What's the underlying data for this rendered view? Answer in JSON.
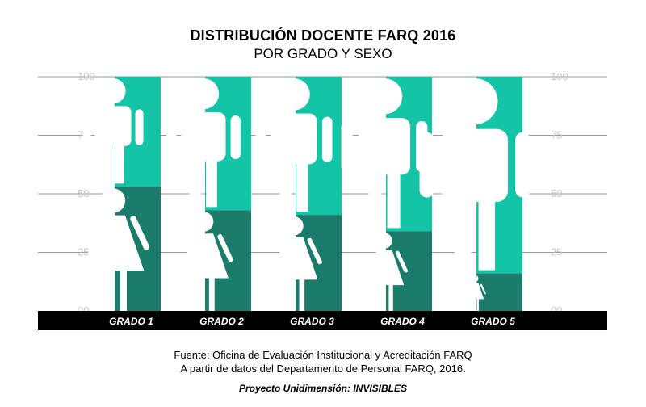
{
  "title": "DISTRIBUCIÓN DOCENTE FARQ 2016",
  "subtitle": "POR GRADO Y SEXO",
  "source_line1": "Fuente: Oficina de Evaluación Institucional y Acreditación FARQ",
  "source_line2": "A partir de datos del Departamento de Personal FARQ, 2016.",
  "project": "Proyecto Unidimensión: INVISIBLES",
  "chart_data": {
    "type": "bar",
    "stacked": true,
    "ylim": [
      0,
      100
    ],
    "y_ticks": [
      "00",
      "25",
      "50",
      "75",
      "100"
    ],
    "categories": [
      "GRADO 1",
      "GRADO 2",
      "GRADO 3",
      "GRADO 4",
      "GRADO 5"
    ],
    "series": [
      {
        "values": [
          53,
          43,
          41,
          34,
          16
        ],
        "color": "#1b7c6c",
        "icon": "woman-icon"
      },
      {
        "values": [
          47,
          57,
          59,
          66,
          84
        ],
        "color": "#14c4a6",
        "icon": "man-icon"
      }
    ],
    "axis_bar_color": "#000000",
    "gridline_color": "#999999"
  }
}
